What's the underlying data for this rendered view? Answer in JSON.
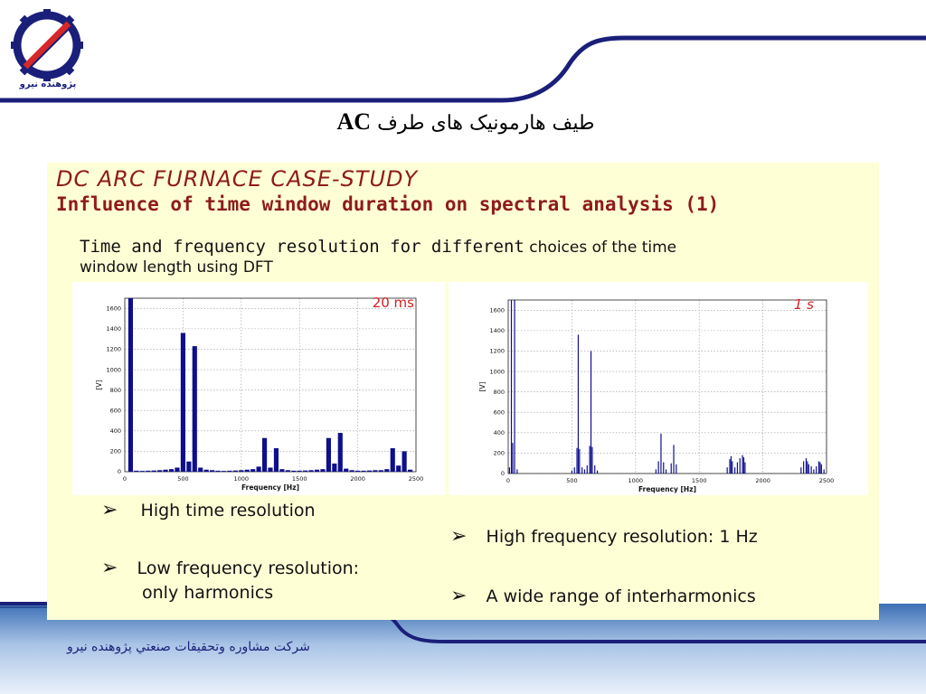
{
  "colors": {
    "accent": "#1a1f7a",
    "heading": "#8e1b1b",
    "panel": "#ffffd6",
    "bar": "#0d0f8c",
    "annotation": "#d02020"
  },
  "logo": {
    "icon": "company-logo-icon",
    "text": "پژوهنده نیرو"
  },
  "title": {
    "text": "طیف هارمونیک های طرف",
    "suffix": "AC"
  },
  "content": {
    "heading1": "DC ARC FURNACE CASE-STUDY",
    "heading2": "Influence of time window duration on spectral analysis (1)",
    "desc_line1_a": "Time and frequency resolution for different",
    "desc_line1_b": " choices of the time",
    "desc_line2": "window length using DFT"
  },
  "bullets_left": [
    "High time resolution",
    "Low frequency resolution:",
    "only harmonics"
  ],
  "bullets_right": [
    "High frequency resolution: 1 Hz",
    "A wide range of interharmonics"
  ],
  "footer": {
    "text": "شركت مشاوره وتحقيقات صنعتي پژوهنده نيرو"
  },
  "chart_data": [
    {
      "type": "bar",
      "annotation": "20 ms",
      "xlabel": "Frequency [Hz]",
      "ylabel": "[V]",
      "xlim": [
        0,
        2500
      ],
      "ylim": [
        0,
        1700
      ],
      "xticks": [
        0,
        500,
        1000,
        1500,
        2000,
        2500
      ],
      "yticks": [
        0,
        200,
        400,
        600,
        800,
        1000,
        1200,
        1400,
        1600
      ],
      "bar_width": 40,
      "x": [
        50,
        100,
        150,
        200,
        250,
        300,
        350,
        400,
        450,
        500,
        550,
        600,
        650,
        700,
        750,
        800,
        850,
        900,
        950,
        1000,
        1050,
        1100,
        1150,
        1200,
        1250,
        1300,
        1350,
        1400,
        1450,
        1500,
        1550,
        1600,
        1650,
        1700,
        1750,
        1800,
        1850,
        1900,
        1950,
        2000,
        2050,
        2100,
        2150,
        2200,
        2250,
        2300,
        2350,
        2400,
        2450
      ],
      "values": [
        1700,
        10,
        8,
        10,
        12,
        15,
        20,
        25,
        40,
        1360,
        100,
        1230,
        40,
        20,
        15,
        10,
        8,
        10,
        12,
        15,
        20,
        25,
        50,
        330,
        40,
        230,
        25,
        15,
        10,
        10,
        12,
        15,
        20,
        25,
        330,
        80,
        380,
        30,
        15,
        10,
        10,
        12,
        15,
        15,
        25,
        230,
        60,
        200,
        20
      ]
    },
    {
      "type": "line",
      "annotation": "1 s",
      "xlabel": "Frequency [Hz]",
      "ylabel": "[V]",
      "xlim": [
        0,
        2500
      ],
      "ylim": [
        0,
        1700
      ],
      "xticks": [
        0,
        500,
        1000,
        1500,
        2000,
        2500
      ],
      "yticks": [
        0,
        200,
        400,
        600,
        800,
        1000,
        1200,
        1400,
        1600
      ],
      "x": [
        10,
        25,
        35,
        50,
        70,
        500,
        520,
        540,
        550,
        560,
        580,
        600,
        620,
        640,
        650,
        660,
        680,
        700,
        1160,
        1180,
        1200,
        1220,
        1240,
        1280,
        1300,
        1320,
        1720,
        1740,
        1750,
        1760,
        1780,
        1800,
        1820,
        1840,
        1850,
        1860,
        2300,
        2320,
        2340,
        2350,
        2360,
        2380,
        2400,
        2420,
        2440,
        2450,
        2460,
        2480
      ],
      "values": [
        60,
        1700,
        300,
        1700,
        40,
        30,
        60,
        250,
        1360,
        240,
        60,
        40,
        80,
        270,
        1200,
        260,
        80,
        30,
        40,
        120,
        390,
        110,
        40,
        100,
        280,
        90,
        60,
        140,
        170,
        120,
        60,
        110,
        150,
        180,
        160,
        110,
        60,
        120,
        150,
        120,
        90,
        70,
        40,
        70,
        120,
        110,
        90,
        40
      ]
    }
  ]
}
